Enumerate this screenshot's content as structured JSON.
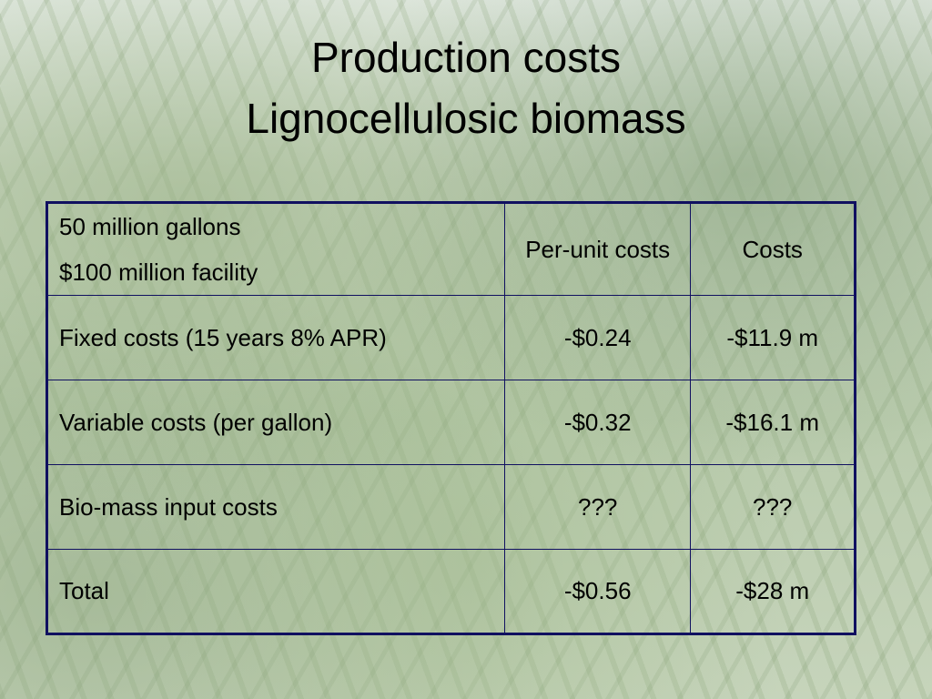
{
  "title": {
    "lines": [
      "Production costs",
      "Lignocellulosic biomass"
    ]
  },
  "table": {
    "header": [
      [
        "50 million gallons",
        "$100 million facility"
      ],
      "Per-unit costs",
      "Costs"
    ],
    "rows": [
      [
        "Fixed costs (15 years 8% APR)",
        "-$0.24",
        "-$11.9 m"
      ],
      [
        "Variable costs (per gallon)",
        "-$0.32",
        "-$16.1 m"
      ],
      [
        "Bio-mass input costs",
        "???",
        "???"
      ],
      [
        "Total",
        "-$0.56",
        "-$28 m"
      ]
    ]
  }
}
